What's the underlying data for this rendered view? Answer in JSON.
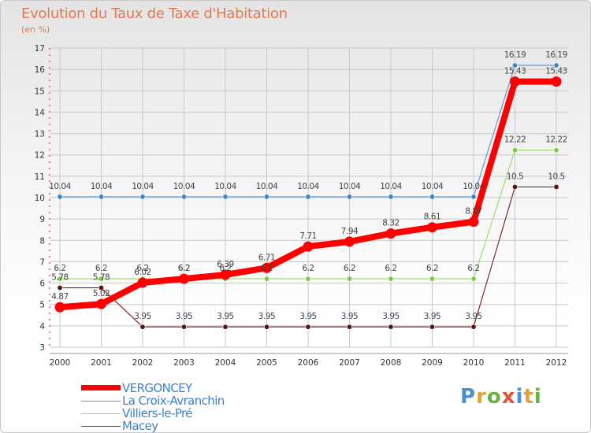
{
  "title": "Evolution du Taux de Taxe d'Habitation",
  "subtitle": "(en %)",
  "brand": {
    "text": "Proxiti",
    "colors": [
      "#4a8fd0",
      "#e0a23a",
      "#6bb040",
      "#e0523a",
      "#4a8fd0",
      "#e0a23a",
      "#6bb040"
    ]
  },
  "chart_data": {
    "type": "line",
    "title": "Evolution du Taux de Taxe d'Habitation",
    "ylabel": "(en %)",
    "xlabel": "",
    "categories": [
      "2000",
      "2001",
      "2002",
      "2003",
      "2004",
      "2005",
      "2006",
      "2007",
      "2008",
      "2009",
      "2010",
      "2011",
      "2012"
    ],
    "ylim": [
      3,
      17
    ],
    "yticks": [
      3,
      4,
      5,
      6,
      7,
      8,
      9,
      10,
      11,
      12,
      13,
      14,
      15,
      16,
      17
    ],
    "grid": true,
    "legend": "bottom-left",
    "series": [
      {
        "name": "Macey",
        "color": "#7a2c2c",
        "marker": "#5a1616",
        "width": 1.2,
        "values": [
          5.78,
          5.78,
          3.95,
          3.95,
          3.95,
          3.95,
          3.95,
          3.95,
          3.95,
          3.95,
          3.95,
          10.5,
          10.5
        ],
        "labels": [
          "5.78",
          "5.78",
          "3.95",
          "3.95",
          "3.95",
          "3.95",
          "3.95",
          "3.95",
          "3.95",
          "3.95",
          "3.95",
          "10.5",
          "10.5"
        ]
      },
      {
        "name": "Villiers-le-Pré",
        "color": "#9fdc6a",
        "marker": "#7ec84a",
        "width": 1.2,
        "values": [
          6.2,
          6.2,
          6.2,
          6.2,
          6.2,
          6.2,
          6.2,
          6.2,
          6.2,
          6.2,
          6.2,
          12.22,
          12.22
        ],
        "labels": [
          "6.2",
          "6.2",
          "6.2",
          "6.2",
          "6.2",
          "6.2",
          "6.2",
          "6.2",
          "6.2",
          "6.2",
          "6.2",
          "12.22",
          "12.22"
        ]
      },
      {
        "name": "La Croix-Avranchin",
        "color": "#5b9bd5",
        "marker": "#3f86c9",
        "width": 1.2,
        "values": [
          10.04,
          10.04,
          10.04,
          10.04,
          10.04,
          10.04,
          10.04,
          10.04,
          10.04,
          10.04,
          10.04,
          16.19,
          16.19
        ],
        "labels": [
          "10.04",
          "10.04",
          "10.04",
          "10.04",
          "10.04",
          "10.04",
          "10.04",
          "10.04",
          "10.04",
          "10.04",
          "10.04",
          "16.19",
          "16.19"
        ]
      },
      {
        "name": "VERGONCEY",
        "color": "#ff0000",
        "marker": "#ff0000",
        "width": 8,
        "values": [
          4.87,
          5.02,
          6.02,
          6.2,
          6.39,
          6.71,
          7.71,
          7.94,
          8.32,
          8.61,
          8.87,
          15.43,
          15.43
        ],
        "labels": [
          "4.87",
          "5.02",
          "6.02",
          "6.2",
          "6.39",
          "6.71",
          "7.71",
          "7.94",
          "8.32",
          "8.61",
          "8.87",
          "15.43",
          "15.43"
        ]
      }
    ]
  },
  "legend": [
    {
      "name": "VERGONCEY",
      "color": "#ff0000",
      "thickness": 7
    },
    {
      "name": "La Croix-Avranchin",
      "color": "#5b9bd5",
      "thickness": 1
    },
    {
      "name": "Villiers-le-Pré",
      "color": "#9fdc6a",
      "thickness": 1
    },
    {
      "name": "Macey",
      "color": "#7a2c2c",
      "thickness": 1
    }
  ]
}
